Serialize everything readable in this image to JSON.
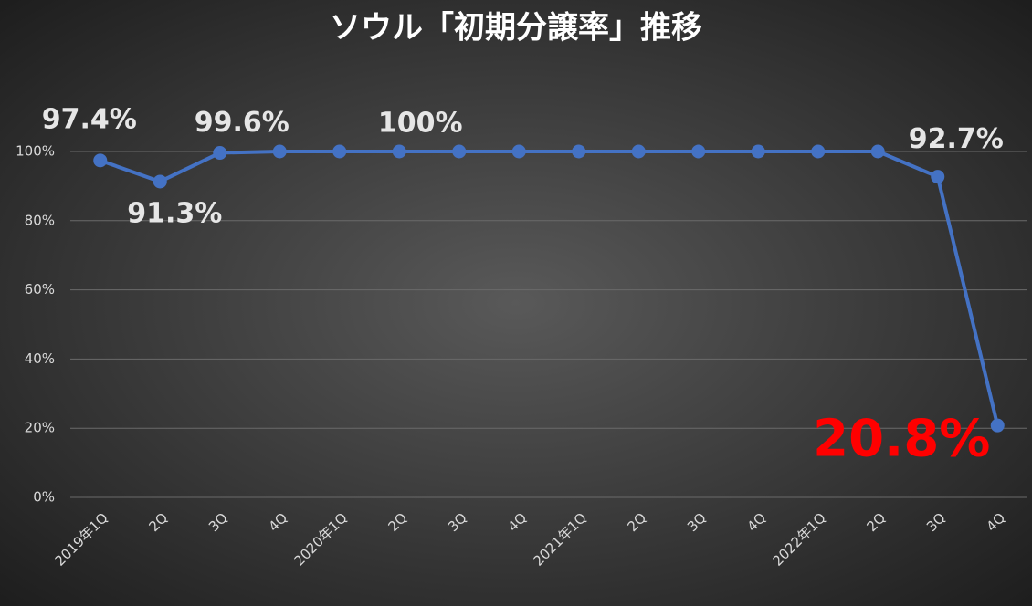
{
  "chart_data": {
    "type": "line",
    "title": "ソウル「初期分譲率」推移",
    "categories": [
      "2019年1Q",
      "2Q",
      "3Q",
      "4Q",
      "2020年1Q",
      "2Q",
      "3Q",
      "4Q",
      "2021年1Q",
      "2Q",
      "3Q",
      "4Q",
      "2022年1Q",
      "2Q",
      "3Q",
      "4Q"
    ],
    "series": [
      {
        "name": "初期分譲率",
        "color": "#4472c4",
        "values": [
          97.4,
          91.3,
          99.6,
          100,
          100,
          100,
          100,
          100,
          100,
          100,
          100,
          100,
          100,
          100,
          92.7,
          20.8
        ],
        "value_labels": [
          "97.4%",
          "91.3%",
          "99.6%",
          null,
          null,
          "100%",
          null,
          null,
          null,
          null,
          null,
          null,
          null,
          null,
          "92.7%",
          "20.8%"
        ]
      }
    ],
    "ylim": [
      0,
      100
    ],
    "yticks": [
      {
        "value": 0,
        "label": "0%"
      },
      {
        "value": 20,
        "label": "20%"
      },
      {
        "value": 40,
        "label": "40%"
      },
      {
        "value": 60,
        "label": "60%"
      },
      {
        "value": 80,
        "label": "80%"
      },
      {
        "value": 100,
        "label": "100%"
      }
    ],
    "grid": true
  }
}
